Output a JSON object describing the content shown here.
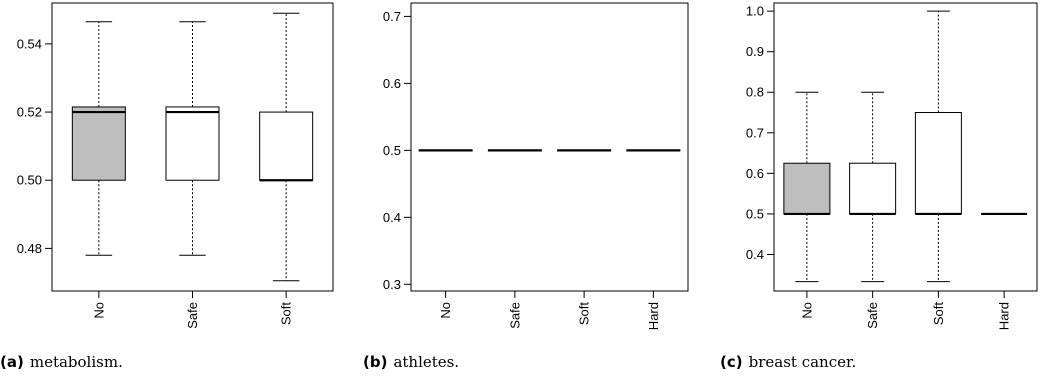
{
  "chart_data": [
    {
      "type": "boxplot",
      "categories": [
        "No",
        "Safe",
        "Soft"
      ],
      "boxes": [
        {
          "name": "No",
          "whisker_low": 0.478,
          "q1": 0.5,
          "median": 0.52,
          "q3": 0.5215,
          "whisker_high": 0.5465,
          "fill": "#bebebe"
        },
        {
          "name": "Safe",
          "whisker_low": 0.478,
          "q1": 0.5,
          "median": 0.52,
          "q3": 0.5215,
          "whisker_high": 0.5465,
          "fill": "#ffffff"
        },
        {
          "name": "Soft",
          "whisker_low": 0.4705,
          "q1": 0.5,
          "median": 0.5,
          "q3": 0.52,
          "whisker_high": 0.549,
          "fill": "#ffffff"
        }
      ],
      "yticks": [
        "0.48",
        "0.50",
        "0.52",
        "0.54"
      ],
      "ylim": [
        0.4675,
        0.552
      ],
      "caption_label": "(a)",
      "caption_text": "metabolism."
    },
    {
      "type": "boxplot",
      "categories": [
        "No",
        "Safe",
        "Soft",
        "Hard"
      ],
      "boxes": [
        {
          "name": "No",
          "whisker_low": 0.5,
          "q1": 0.5,
          "median": 0.5,
          "q3": 0.5,
          "whisker_high": 0.5,
          "fill": "#bebebe"
        },
        {
          "name": "Safe",
          "whisker_low": 0.5,
          "q1": 0.5,
          "median": 0.5,
          "q3": 0.5,
          "whisker_high": 0.5,
          "fill": "#ffffff"
        },
        {
          "name": "Soft",
          "whisker_low": 0.5,
          "q1": 0.5,
          "median": 0.5,
          "q3": 0.5,
          "whisker_high": 0.5,
          "fill": "#ffffff"
        },
        {
          "name": "Hard",
          "whisker_low": 0.5,
          "q1": 0.5,
          "median": 0.5,
          "q3": 0.5,
          "whisker_high": 0.5,
          "fill": "#ffffff"
        }
      ],
      "yticks": [
        "0.3",
        "0.4",
        "0.5",
        "0.6",
        "0.7"
      ],
      "ylim": [
        0.29,
        0.72
      ],
      "caption_label": "(b)",
      "caption_text": "athletes."
    },
    {
      "type": "boxplot",
      "categories": [
        "No",
        "Safe",
        "Soft",
        "Hard"
      ],
      "boxes": [
        {
          "name": "No",
          "whisker_low": 0.333,
          "q1": 0.5,
          "median": 0.5,
          "q3": 0.625,
          "whisker_high": 0.8,
          "fill": "#bebebe"
        },
        {
          "name": "Safe",
          "whisker_low": 0.333,
          "q1": 0.5,
          "median": 0.5,
          "q3": 0.625,
          "whisker_high": 0.8,
          "fill": "#ffffff"
        },
        {
          "name": "Soft",
          "whisker_low": 0.333,
          "q1": 0.5,
          "median": 0.5,
          "q3": 0.75,
          "whisker_high": 1.0,
          "fill": "#ffffff"
        },
        {
          "name": "Hard",
          "whisker_low": 0.5,
          "q1": 0.5,
          "median": 0.5,
          "q3": 0.5,
          "whisker_high": 0.5,
          "fill": "#ffffff"
        }
      ],
      "yticks": [
        "0.4",
        "0.5",
        "0.6",
        "0.7",
        "0.8",
        "0.9",
        "1.0"
      ],
      "ylim": [
        0.31,
        1.02
      ],
      "caption_label": "(c)",
      "caption_text": "breast cancer."
    }
  ]
}
